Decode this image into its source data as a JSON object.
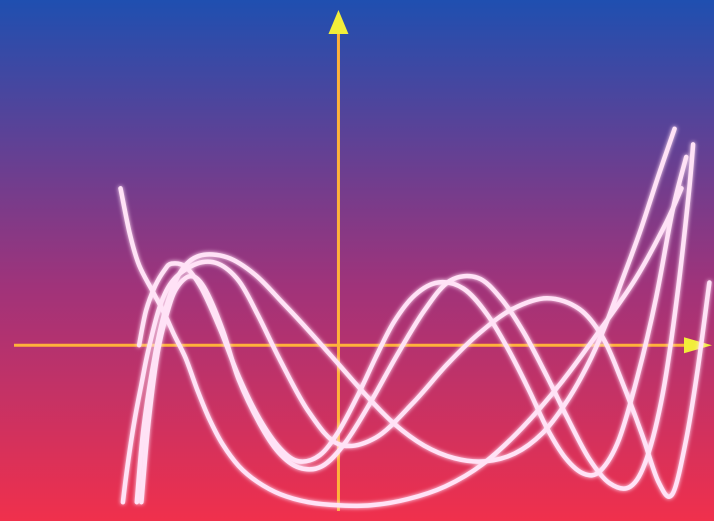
{
  "chart_data": {
    "type": "line",
    "title": "",
    "xlabel": "",
    "ylabel": "",
    "grid": false,
    "legend": "none",
    "xlim": [
      -1.46,
      1.62
    ],
    "ylim": [
      -1.12,
      2.2
    ],
    "colors": {
      "background_top": "#1f4fb0",
      "background_bottom": "#f0304c",
      "axis": "#ffb23a",
      "arrow": "#f2ee3a",
      "curve": "#ffe2f6",
      "curve_glow": "#ffffff"
    },
    "series": [
      {
        "values": [
          [
            -0.94,
            1.0
          ],
          [
            -0.9,
            0.71
          ],
          [
            -0.86,
            0.51
          ],
          [
            -0.8,
            0.34
          ],
          [
            -0.75,
            0.2
          ],
          [
            -0.71,
            0.07
          ],
          [
            -0.66,
            -0.08
          ],
          [
            -0.61,
            -0.28
          ],
          [
            -0.56,
            -0.46
          ],
          [
            -0.5,
            -0.63
          ],
          [
            -0.43,
            -0.77
          ],
          [
            -0.35,
            -0.87
          ],
          [
            -0.25,
            -0.95
          ],
          [
            -0.13,
            -1.0
          ],
          [
            0.0,
            -1.02
          ],
          [
            0.14,
            -1.02
          ],
          [
            0.3,
            -0.98
          ],
          [
            0.46,
            -0.9
          ],
          [
            0.62,
            -0.76
          ],
          [
            0.79,
            -0.53
          ],
          [
            0.96,
            -0.24
          ],
          [
            1.12,
            0.08
          ],
          [
            1.28,
            0.42
          ],
          [
            1.41,
            0.77
          ],
          [
            1.48,
            1.0
          ]
        ]
      },
      {
        "values": [
          [
            -0.93,
            -1.0
          ],
          [
            -0.91,
            -0.77
          ],
          [
            -0.88,
            -0.48
          ],
          [
            -0.85,
            -0.25
          ],
          [
            -0.82,
            -0.03
          ],
          [
            -0.77,
            0.25
          ],
          [
            -0.71,
            0.42
          ],
          [
            -0.61,
            0.52
          ],
          [
            -0.52,
            0.52
          ],
          [
            -0.43,
            0.41
          ],
          [
            -0.35,
            0.2
          ],
          [
            -0.25,
            -0.1
          ],
          [
            -0.13,
            -0.42
          ],
          [
            0.0,
            -0.63
          ],
          [
            0.16,
            -0.59
          ],
          [
            0.32,
            -0.37
          ],
          [
            0.47,
            -0.12
          ],
          [
            0.61,
            0.08
          ],
          [
            0.75,
            0.23
          ],
          [
            0.9,
            0.3
          ],
          [
            1.04,
            0.23
          ],
          [
            1.14,
            0.05
          ],
          [
            1.22,
            -0.22
          ],
          [
            1.31,
            -0.57
          ],
          [
            1.38,
            -0.87
          ],
          [
            1.44,
            -0.95
          ],
          [
            1.5,
            -0.6
          ],
          [
            1.55,
            -0.15
          ],
          [
            1.6,
            0.4
          ]
        ]
      },
      {
        "values": [
          [
            -0.86,
            0.0
          ],
          [
            -0.83,
            0.22
          ],
          [
            -0.79,
            0.38
          ],
          [
            -0.75,
            0.48
          ],
          [
            -0.72,
            0.52
          ],
          [
            -0.66,
            0.5
          ],
          [
            -0.59,
            0.36
          ],
          [
            -0.51,
            0.1
          ],
          [
            -0.43,
            -0.2
          ],
          [
            -0.34,
            -0.47
          ],
          [
            -0.25,
            -0.66
          ],
          [
            -0.17,
            -0.74
          ],
          [
            -0.08,
            -0.7
          ],
          [
            0.0,
            -0.55
          ],
          [
            0.08,
            -0.33
          ],
          [
            0.16,
            -0.08
          ],
          [
            0.24,
            0.15
          ],
          [
            0.33,
            0.32
          ],
          [
            0.43,
            0.4
          ],
          [
            0.54,
            0.36
          ],
          [
            0.64,
            0.2
          ],
          [
            0.73,
            -0.02
          ],
          [
            0.82,
            -0.28
          ],
          [
            0.9,
            -0.53
          ],
          [
            0.98,
            -0.72
          ],
          [
            1.06,
            -0.82
          ],
          [
            1.13,
            -0.8
          ],
          [
            1.21,
            -0.6
          ],
          [
            1.29,
            -0.2
          ],
          [
            1.37,
            0.3
          ],
          [
            1.44,
            0.85
          ],
          [
            1.5,
            1.2
          ]
        ]
      },
      {
        "values": [
          [
            -0.85,
            -1.0
          ],
          [
            -0.82,
            -0.5
          ],
          [
            -0.78,
            -0.05
          ],
          [
            -0.74,
            0.2
          ],
          [
            -0.7,
            0.36
          ],
          [
            -0.64,
            0.44
          ],
          [
            -0.58,
            0.37
          ],
          [
            -0.5,
            0.1
          ],
          [
            -0.43,
            -0.22
          ],
          [
            -0.34,
            -0.5
          ],
          [
            -0.26,
            -0.68
          ],
          [
            -0.17,
            -0.78
          ],
          [
            -0.07,
            -0.77
          ],
          [
            0.03,
            -0.62
          ],
          [
            0.14,
            -0.36
          ],
          [
            0.25,
            -0.07
          ],
          [
            0.37,
            0.22
          ],
          [
            0.48,
            0.41
          ],
          [
            0.6,
            0.43
          ],
          [
            0.7,
            0.3
          ],
          [
            0.8,
            0.08
          ],
          [
            0.9,
            -0.2
          ],
          [
            0.99,
            -0.47
          ],
          [
            1.08,
            -0.72
          ],
          [
            1.17,
            -0.88
          ],
          [
            1.26,
            -0.9
          ],
          [
            1.33,
            -0.72
          ],
          [
            1.4,
            -0.3
          ],
          [
            1.46,
            0.3
          ],
          [
            1.51,
            0.95
          ],
          [
            1.53,
            1.28
          ]
        ]
      },
      {
        "values": [
          [
            -0.87,
            -1.0
          ],
          [
            -0.84,
            -0.52
          ],
          [
            -0.79,
            -0.05
          ],
          [
            -0.74,
            0.26
          ],
          [
            -0.68,
            0.47
          ],
          [
            -0.6,
            0.57
          ],
          [
            -0.48,
            0.56
          ],
          [
            -0.36,
            0.45
          ],
          [
            -0.24,
            0.27
          ],
          [
            -0.12,
            0.08
          ],
          [
            0.0,
            -0.12
          ],
          [
            0.12,
            -0.32
          ],
          [
            0.24,
            -0.5
          ],
          [
            0.37,
            -0.64
          ],
          [
            0.5,
            -0.72
          ],
          [
            0.63,
            -0.74
          ],
          [
            0.76,
            -0.69
          ],
          [
            0.88,
            -0.56
          ],
          [
            0.98,
            -0.37
          ],
          [
            1.07,
            -0.14
          ],
          [
            1.15,
            0.12
          ],
          [
            1.22,
            0.4
          ],
          [
            1.3,
            0.72
          ],
          [
            1.38,
            1.08
          ],
          [
            1.45,
            1.38
          ]
        ]
      }
    ]
  }
}
